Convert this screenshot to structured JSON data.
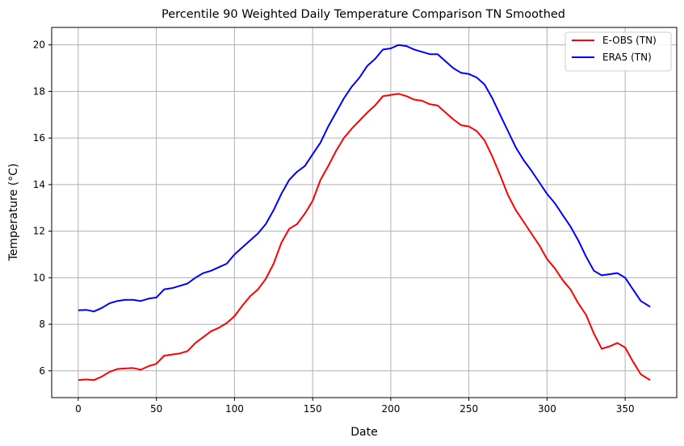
{
  "chart_data": {
    "type": "line",
    "title": "Percentile 90 Weighted Daily Temperature Comparison TN Smoothed",
    "xlabel": "Date",
    "ylabel": "Temperature (°C)",
    "xlim": [
      -17,
      383
    ],
    "ylim": [
      4.85,
      20.75
    ],
    "xticks": [
      0,
      50,
      100,
      150,
      200,
      250,
      300,
      350
    ],
    "yticks": [
      6,
      8,
      10,
      12,
      14,
      16,
      18,
      20
    ],
    "grid": true,
    "legend_position": "top-right",
    "series": [
      {
        "name": "E-OBS (TN)",
        "color": "#ff0000",
        "x": [
          0,
          5,
          10,
          15,
          20,
          25,
          30,
          35,
          40,
          45,
          50,
          55,
          60,
          65,
          70,
          75,
          80,
          85,
          90,
          95,
          100,
          105,
          110,
          115,
          120,
          125,
          130,
          135,
          140,
          145,
          150,
          155,
          160,
          165,
          170,
          175,
          180,
          185,
          190,
          195,
          200,
          205,
          210,
          215,
          220,
          225,
          230,
          235,
          240,
          245,
          250,
          255,
          260,
          265,
          270,
          275,
          280,
          285,
          290,
          295,
          300,
          305,
          310,
          315,
          320,
          325,
          330,
          335,
          340,
          345,
          350,
          355,
          360,
          366
        ],
        "y": [
          5.6,
          5.63,
          5.6,
          5.75,
          5.95,
          6.08,
          6.1,
          6.12,
          6.05,
          6.2,
          6.3,
          6.65,
          6.7,
          6.75,
          6.85,
          7.2,
          7.45,
          7.7,
          7.85,
          8.05,
          8.35,
          8.8,
          9.2,
          9.5,
          9.95,
          10.6,
          11.5,
          12.1,
          12.3,
          12.75,
          13.3,
          14.2,
          14.8,
          15.45,
          16.0,
          16.4,
          16.75,
          17.1,
          17.4,
          17.8,
          17.85,
          17.9,
          17.8,
          17.65,
          17.6,
          17.45,
          17.4,
          17.1,
          16.8,
          16.55,
          16.5,
          16.3,
          15.9,
          15.2,
          14.4,
          13.55,
          12.9,
          12.4,
          11.9,
          11.4,
          10.8,
          10.4,
          9.9,
          9.5,
          8.9,
          8.4,
          7.6,
          6.95,
          7.05,
          7.2,
          7.0,
          6.4,
          5.85,
          5.6
        ]
      },
      {
        "name": "ERA5 (TN)",
        "color": "#0000ff",
        "x": [
          0,
          5,
          10,
          15,
          20,
          25,
          30,
          35,
          40,
          45,
          50,
          55,
          60,
          65,
          70,
          75,
          80,
          85,
          90,
          95,
          100,
          105,
          110,
          115,
          120,
          125,
          130,
          135,
          140,
          145,
          150,
          155,
          160,
          165,
          170,
          175,
          180,
          185,
          190,
          195,
          200,
          205,
          210,
          215,
          220,
          225,
          230,
          235,
          240,
          245,
          250,
          255,
          260,
          265,
          270,
          275,
          280,
          285,
          290,
          295,
          300,
          305,
          310,
          315,
          320,
          325,
          330,
          335,
          340,
          345,
          350,
          355,
          360,
          366
        ],
        "y": [
          8.6,
          8.62,
          8.55,
          8.7,
          8.9,
          9.0,
          9.05,
          9.05,
          9.0,
          9.1,
          9.15,
          9.5,
          9.55,
          9.65,
          9.75,
          10.0,
          10.2,
          10.3,
          10.45,
          10.6,
          11.0,
          11.3,
          11.6,
          11.9,
          12.3,
          12.9,
          13.6,
          14.2,
          14.55,
          14.8,
          15.3,
          15.8,
          16.5,
          17.1,
          17.7,
          18.2,
          18.6,
          19.1,
          19.4,
          19.8,
          19.85,
          20.0,
          19.95,
          19.8,
          19.7,
          19.6,
          19.6,
          19.3,
          19.0,
          18.8,
          18.75,
          18.6,
          18.3,
          17.7,
          17.0,
          16.3,
          15.6,
          15.05,
          14.6,
          14.1,
          13.6,
          13.2,
          12.7,
          12.2,
          11.6,
          10.9,
          10.3,
          10.1,
          10.15,
          10.2,
          10.0,
          9.5,
          9.0,
          8.75
        ]
      }
    ]
  }
}
